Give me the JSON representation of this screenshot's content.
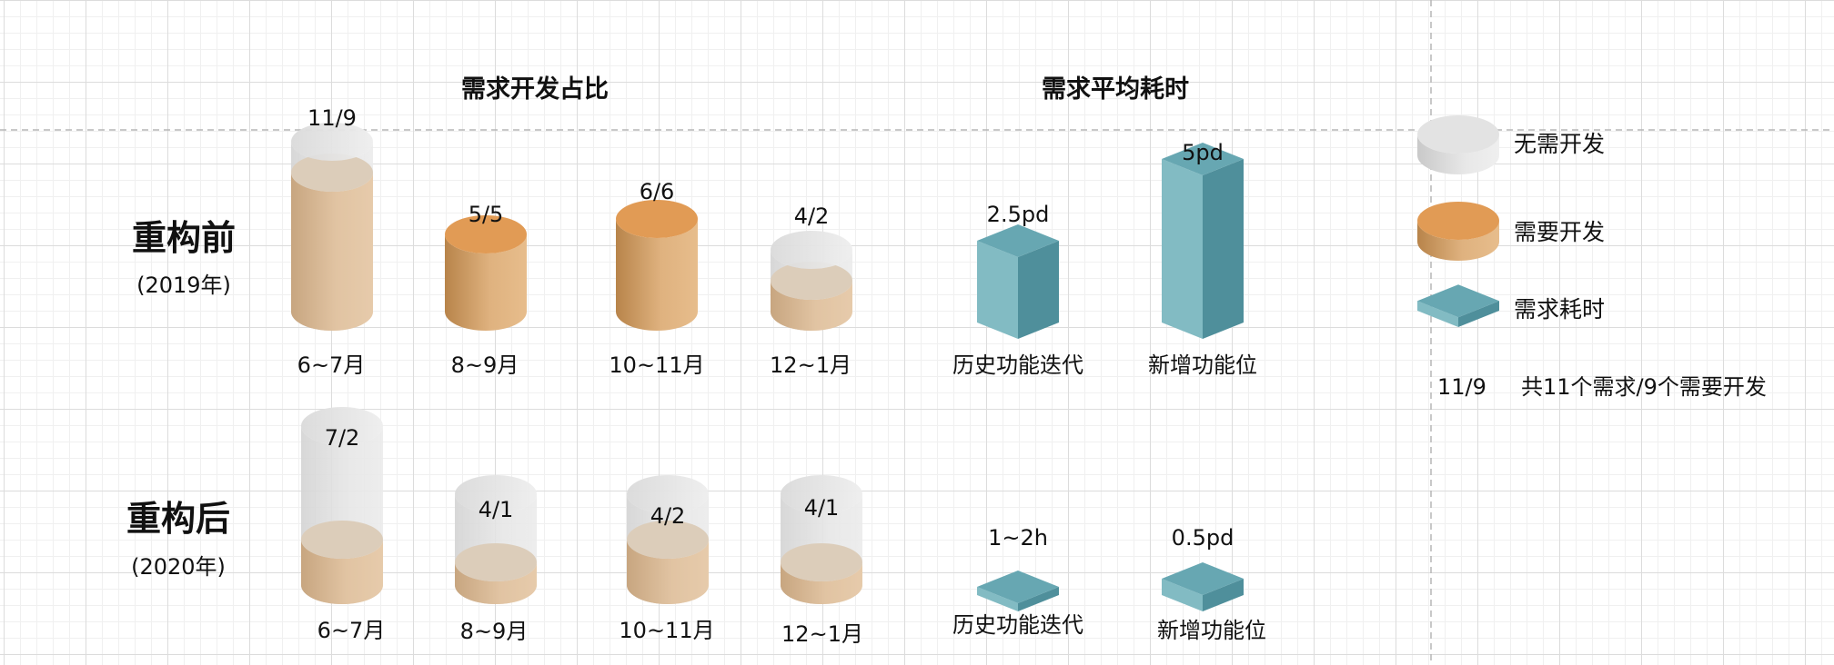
{
  "titles": {
    "ratio": "需求开发占比",
    "time": "需求平均耗时"
  },
  "rows": [
    {
      "label": "重构前",
      "year": "(2019年)"
    },
    {
      "label": "重构后",
      "year": "(2020年)"
    }
  ],
  "legend": {
    "no_dev": "无需开发",
    "need_dev": "需要开发",
    "time": "需求耗时",
    "example_value": "11/9",
    "example_text": "共11个需求/9个需要开发"
  },
  "colors": {
    "gray": "#e2e2e2",
    "orange": "#e19b55",
    "teal": "#67a7b2"
  },
  "chart_data": [
    {
      "type": "bar",
      "title": "需求开发占比",
      "categories": [
        "6~7月",
        "8~9月",
        "10~11月",
        "12~1月"
      ],
      "series": [
        {
          "name": "重构前 总需求",
          "values": [
            11,
            5,
            6,
            4
          ]
        },
        {
          "name": "重构前 需要开发",
          "values": [
            9,
            5,
            6,
            2
          ]
        },
        {
          "name": "重构后 总需求",
          "values": [
            7,
            4,
            4,
            4
          ]
        },
        {
          "name": "重构后 需要开发",
          "values": [
            2,
            1,
            2,
            1
          ]
        }
      ],
      "labels_before": [
        "11/9",
        "5/5",
        "6/6",
        "4/2"
      ],
      "labels_after": [
        "7/2",
        "4/1",
        "4/2",
        "4/1"
      ]
    },
    {
      "type": "bar",
      "title": "需求平均耗时",
      "categories": [
        "历史功能迭代",
        "新增功能位"
      ],
      "series": [
        {
          "name": "重构前",
          "values": [
            2.5,
            5
          ],
          "unit": "pd"
        },
        {
          "name": "重构后",
          "values": [
            0.25,
            0.5
          ],
          "unit": "pd"
        }
      ],
      "labels_before": [
        "2.5pd",
        "5pd"
      ],
      "labels_after": [
        "1~2h",
        "0.5pd"
      ]
    }
  ]
}
